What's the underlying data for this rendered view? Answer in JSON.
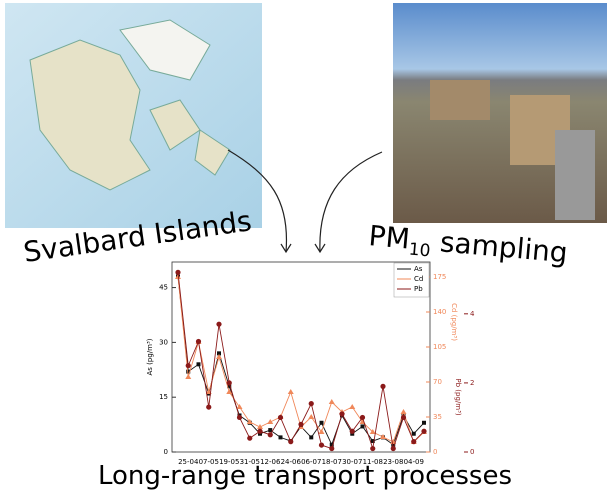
{
  "captions": {
    "map": "Svalbard Islands",
    "sampling": {
      "text": "PM",
      "subscript": "10",
      "rest": " sampling"
    },
    "bottom": "Long-range transport processes"
  },
  "chart_data": {
    "type": "line",
    "categories": [
      null,
      "25-04",
      null,
      "07-05",
      null,
      "19-05",
      null,
      "31-05",
      null,
      "12-06",
      null,
      "24-06",
      null,
      "06-07",
      null,
      "18-07",
      null,
      "30-07",
      null,
      "11-08",
      null,
      "23-08",
      null,
      "04-09",
      null
    ],
    "series": [
      {
        "name": "As",
        "color": "#111111",
        "marker": "square",
        "values": [
          48,
          22,
          24,
          16,
          27,
          18,
          10,
          8,
          5,
          6,
          4,
          3,
          7,
          4,
          8,
          2,
          10,
          5,
          7,
          3,
          4,
          2,
          10,
          5,
          8
        ]
      },
      {
        "name": "Cd",
        "color": "#f0885a",
        "marker": "triangle",
        "axis": "y2",
        "values": [
          175,
          75,
          110,
          60,
          95,
          60,
          45,
          30,
          25,
          30,
          35,
          60,
          25,
          35,
          20,
          50,
          40,
          45,
          30,
          20,
          15,
          10,
          40,
          10,
          20
        ]
      },
      {
        "name": "Pb",
        "color": "#8b1a1a",
        "marker": "circle",
        "axis": "y3",
        "values": [
          5.2,
          2.5,
          3.2,
          1.3,
          3.7,
          2,
          1,
          0.4,
          0.6,
          0.5,
          1,
          0.3,
          0.8,
          1.4,
          0.2,
          0.1,
          1.1,
          0.6,
          1,
          0.1,
          1.9,
          0.1,
          1,
          0.3,
          0.6
        ]
      }
    ],
    "ylabel": "As (pg/m³)",
    "ylim": [
      0,
      52
    ],
    "yticks": [
      0,
      15,
      30,
      45
    ],
    "y2label": "Cd (pg/m³)",
    "y2lim": [
      0,
      190
    ],
    "y2ticks": [
      0,
      35,
      70,
      105,
      140,
      175
    ],
    "y3label": "Pb (pg/m³)",
    "y3lim": [
      0,
      5.5
    ],
    "y3ticks": [
      0,
      2,
      4
    ],
    "legend": "upper right"
  }
}
